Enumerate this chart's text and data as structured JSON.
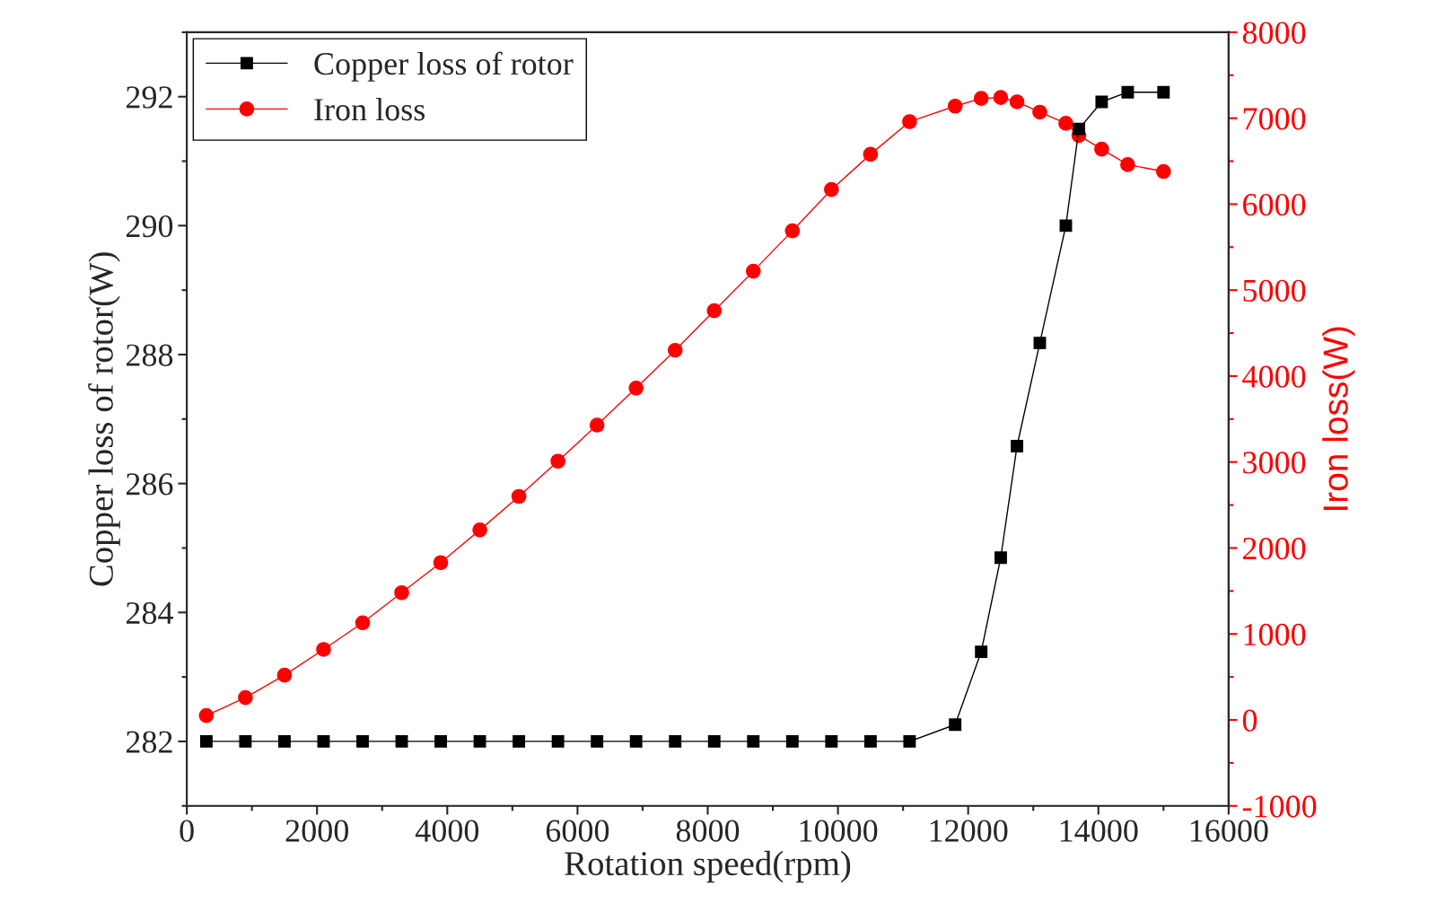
{
  "chart_data": {
    "type": "line",
    "xlabel": "Rotation speed(rpm)",
    "ylabel": "Copper loss of rotor(W)",
    "y2label": "Iron loss(W)",
    "xlim": [
      0,
      16000
    ],
    "xticks": [
      0,
      2000,
      4000,
      6000,
      8000,
      10000,
      12000,
      14000,
      16000
    ],
    "ylim": [
      281,
      293
    ],
    "yticks": [
      282,
      284,
      286,
      288,
      290,
      292
    ],
    "y2lim": [
      -1000,
      8000
    ],
    "y2ticks": [
      -1000,
      0,
      1000,
      2000,
      3000,
      4000,
      5000,
      6000,
      7000,
      8000
    ],
    "legend": "top left",
    "grid": false,
    "x": [
      300,
      900,
      1500,
      2100,
      2700,
      3300,
      3900,
      4500,
      5100,
      5700,
      6300,
      6900,
      7500,
      8100,
      8700,
      9300,
      9900,
      10500,
      11100,
      11800,
      12200,
      12500,
      12750,
      13100,
      13500,
      13700,
      14050,
      14450,
      15000
    ],
    "series": [
      {
        "name": "Copper loss of rotor",
        "color": "#000000",
        "marker": "square",
        "values": [
          282,
          282,
          282,
          282,
          282,
          282,
          282,
          282,
          282,
          282,
          282,
          282,
          282,
          282,
          282,
          282,
          282,
          282,
          282,
          282.26,
          283.39,
          284.85,
          286.58,
          288.18,
          290.0,
          291.5,
          291.92,
          292.07,
          292.07
        ]
      },
      {
        "name": "Iron loss",
        "color": "#ff0000",
        "marker": "circle",
        "axis": "y2",
        "values": [
          50,
          260,
          520,
          820,
          1130,
          1480,
          1830,
          2210,
          2600,
          3010,
          3430,
          3860,
          4300,
          4760,
          5220,
          5690,
          6170,
          6580,
          6960,
          7140,
          7230,
          7240,
          7190,
          7070,
          6940,
          6800,
          6640,
          6460,
          6380
        ]
      }
    ]
  }
}
